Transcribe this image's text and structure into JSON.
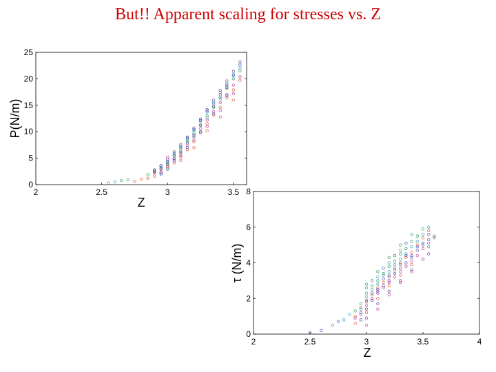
{
  "slide": {
    "title": "But!! Apparent scaling for stresses vs. Z"
  },
  "colors": {
    "title": "#cc0000",
    "series_palette": [
      "#e05a3a",
      "#3a9fb0",
      "#6a3fa0",
      "#2aa05a",
      "#c040a0",
      "#4a5ac0"
    ]
  },
  "chart_data": [
    {
      "id": "pressure",
      "type": "scatter",
      "title": "",
      "xlabel": "Z",
      "ylabel": "P(N/m)",
      "xlim": [
        2,
        3.6
      ],
      "ylim": [
        0,
        25
      ],
      "xticks": [
        "2",
        "2.5",
        "3",
        "3.5"
      ],
      "yticks": [
        "0",
        "5",
        "10",
        "15",
        "20",
        "25"
      ],
      "grid": false,
      "legend": "none",
      "marker": "open-circle",
      "series": [
        {
          "points": [
            [
              2.9,
              1.6
            ],
            [
              2.95,
              2.4
            ],
            [
              3.0,
              3.0
            ],
            [
              3.05,
              4.1
            ],
            [
              3.1,
              5.3
            ],
            [
              3.15,
              6.6
            ],
            [
              3.2,
              8.1
            ],
            [
              3.25,
              9.8
            ],
            [
              3.3,
              11.5
            ],
            [
              3.35,
              13.1
            ],
            [
              3.4,
              14.6
            ],
            [
              3.45,
              16.4
            ],
            [
              3.5,
              17.9
            ],
            [
              3.55,
              19.7
            ],
            [
              2.8,
              1.0
            ],
            [
              2.9,
              2.2
            ],
            [
              3.0,
              3.8
            ],
            [
              3.1,
              4.6
            ],
            [
              3.2,
              7.0
            ],
            [
              3.3,
              10.2
            ],
            [
              3.4,
              12.8
            ],
            [
              3.5,
              16.0
            ],
            [
              2.75,
              0.6
            ],
            [
              2.85,
              1.2
            ]
          ]
        },
        {
          "points": [
            [
              2.95,
              3.2
            ],
            [
              3.0,
              4.4
            ],
            [
              3.05,
              5.9
            ],
            [
              3.1,
              7.0
            ],
            [
              3.15,
              8.6
            ],
            [
              3.2,
              10.2
            ],
            [
              3.25,
              12.0
            ],
            [
              3.3,
              13.7
            ],
            [
              3.35,
              15.6
            ],
            [
              3.4,
              17.4
            ],
            [
              3.45,
              19.0
            ],
            [
              3.5,
              20.8
            ],
            [
              3.55,
              22.0
            ],
            [
              3.0,
              2.9
            ],
            [
              3.1,
              6.1
            ],
            [
              3.2,
              9.4
            ],
            [
              3.3,
              12.6
            ],
            [
              3.4,
              16.2
            ],
            [
              2.55,
              0.3
            ],
            [
              2.6,
              0.5
            ]
          ]
        },
        {
          "points": [
            [
              2.9,
              2.8
            ],
            [
              2.95,
              3.5
            ],
            [
              3.0,
              4.7
            ],
            [
              3.05,
              6.2
            ],
            [
              3.1,
              7.6
            ],
            [
              3.15,
              9.0
            ],
            [
              3.2,
              10.7
            ],
            [
              3.25,
              12.4
            ],
            [
              3.3,
              14.2
            ],
            [
              3.35,
              16.0
            ],
            [
              3.4,
              17.8
            ],
            [
              3.45,
              19.6
            ],
            [
              3.5,
              21.4
            ],
            [
              3.55,
              23.2
            ],
            [
              2.95,
              2.2
            ],
            [
              3.05,
              5.0
            ],
            [
              3.15,
              7.9
            ],
            [
              3.25,
              11.2
            ],
            [
              3.35,
              14.8
            ],
            [
              3.45,
              18.4
            ]
          ]
        },
        {
          "points": [
            [
              2.85,
              1.9
            ],
            [
              2.95,
              3.0
            ],
            [
              3.0,
              4.0
            ],
            [
              3.05,
              5.4
            ],
            [
              3.1,
              6.8
            ],
            [
              3.15,
              8.2
            ],
            [
              3.2,
              9.7
            ],
            [
              3.25,
              11.3
            ],
            [
              3.3,
              13.0
            ],
            [
              3.35,
              14.6
            ],
            [
              3.4,
              16.5
            ],
            [
              3.45,
              18.2
            ],
            [
              3.5,
              20.0
            ],
            [
              3.55,
              21.5
            ],
            [
              2.9,
              2.5
            ],
            [
              3.0,
              3.5
            ],
            [
              3.1,
              6.0
            ],
            [
              3.2,
              9.0
            ],
            [
              2.65,
              0.8
            ],
            [
              2.7,
              0.9
            ]
          ]
        },
        {
          "points": [
            [
              2.9,
              2.3
            ],
            [
              2.95,
              2.9
            ],
            [
              3.0,
              3.4
            ],
            [
              3.05,
              4.8
            ],
            [
              3.1,
              6.3
            ],
            [
              3.15,
              7.4
            ],
            [
              3.2,
              9.2
            ],
            [
              3.25,
              10.6
            ],
            [
              3.3,
              12.2
            ],
            [
              3.35,
              13.8
            ],
            [
              3.4,
              15.5
            ],
            [
              3.45,
              17.0
            ],
            [
              3.5,
              18.8
            ],
            [
              3.55,
              20.4
            ],
            [
              3.0,
              5.2
            ],
            [
              3.1,
              5.5
            ],
            [
              3.2,
              8.4
            ],
            [
              3.3,
              11.0
            ],
            [
              3.4,
              14.0
            ],
            [
              3.5,
              17.2
            ]
          ]
        },
        {
          "points": [
            [
              2.9,
              2.6
            ],
            [
              2.95,
              3.6
            ],
            [
              3.0,
              4.2
            ],
            [
              3.05,
              5.6
            ],
            [
              3.1,
              7.2
            ],
            [
              3.15,
              8.8
            ],
            [
              3.2,
              10.4
            ],
            [
              3.25,
              12.1
            ],
            [
              3.3,
              13.9
            ],
            [
              3.35,
              15.3
            ],
            [
              3.4,
              17.0
            ],
            [
              3.45,
              18.8
            ],
            [
              3.5,
              20.6
            ],
            [
              3.55,
              22.6
            ],
            [
              2.95,
              2.0
            ],
            [
              3.05,
              4.5
            ],
            [
              3.15,
              7.0
            ],
            [
              3.25,
              10.0
            ],
            [
              3.35,
              13.4
            ],
            [
              3.45,
              16.8
            ]
          ]
        }
      ]
    },
    {
      "id": "shear",
      "type": "scatter",
      "title": "",
      "xlabel": "Z",
      "ylabel": "τ (N/m)",
      "xlim": [
        2,
        4
      ],
      "ylim": [
        0,
        8
      ],
      "xticks": [
        "2",
        "2.5",
        "3",
        "3.5",
        "4"
      ],
      "yticks": [
        "0",
        "2",
        "4",
        "6",
        "8"
      ],
      "grid": false,
      "legend": "none",
      "marker": "open-circle",
      "series": [
        {
          "points": [
            [
              2.9,
              1.0
            ],
            [
              2.95,
              1.5
            ],
            [
              3.0,
              1.8
            ],
            [
              3.05,
              2.2
            ],
            [
              3.1,
              2.6
            ],
            [
              3.15,
              2.9
            ],
            [
              3.2,
              3.2
            ],
            [
              3.25,
              3.6
            ],
            [
              3.3,
              3.9
            ],
            [
              3.35,
              4.3
            ],
            [
              3.4,
              4.6
            ],
            [
              3.45,
              5.0
            ],
            [
              3.5,
              5.4
            ],
            [
              3.55,
              5.8
            ],
            [
              2.9,
              0.6
            ],
            [
              3.0,
              1.2
            ],
            [
              3.1,
              2.0
            ],
            [
              3.2,
              2.7
            ],
            [
              3.3,
              3.3
            ],
            [
              3.4,
              3.9
            ]
          ]
        },
        {
          "points": [
            [
              2.85,
              1.1
            ],
            [
              2.95,
              1.4
            ],
            [
              3.0,
              2.1
            ],
            [
              3.05,
              2.5
            ],
            [
              3.1,
              2.8
            ],
            [
              3.15,
              3.3
            ],
            [
              3.2,
              3.5
            ],
            [
              3.25,
              3.9
            ],
            [
              3.3,
              4.2
            ],
            [
              3.35,
              4.5
            ],
            [
              3.4,
              4.9
            ],
            [
              3.45,
              5.2
            ],
            [
              3.5,
              5.6
            ],
            [
              3.55,
              6.0
            ],
            [
              2.7,
              0.5
            ],
            [
              2.8,
              0.8
            ],
            [
              3.0,
              2.8
            ],
            [
              3.1,
              3.2
            ],
            [
              3.2,
              4.0
            ],
            [
              3.3,
              4.7
            ]
          ]
        },
        {
          "points": [
            [
              2.95,
              0.8
            ],
            [
              3.0,
              1.4
            ],
            [
              3.05,
              1.9
            ],
            [
              3.1,
              2.3
            ],
            [
              3.15,
              2.7
            ],
            [
              3.2,
              3.0
            ],
            [
              3.25,
              3.4
            ],
            [
              3.3,
              3.7
            ],
            [
              3.35,
              4.0
            ],
            [
              3.4,
              4.4
            ],
            [
              3.45,
              4.7
            ],
            [
              3.5,
              5.1
            ],
            [
              3.55,
              5.3
            ],
            [
              3.0,
              0.9
            ],
            [
              3.1,
              1.7
            ],
            [
              3.2,
              2.4
            ],
            [
              3.3,
              3.0
            ],
            [
              3.4,
              3.6
            ],
            [
              3.5,
              4.2
            ],
            [
              3.55,
              4.5
            ]
          ]
        },
        {
          "points": [
            [
              2.9,
              1.3
            ],
            [
              2.95,
              1.7
            ],
            [
              3.0,
              2.3
            ],
            [
              3.05,
              2.7
            ],
            [
              3.1,
              3.0
            ],
            [
              3.15,
              3.4
            ],
            [
              3.2,
              3.8
            ],
            [
              3.25,
              4.1
            ],
            [
              3.3,
              4.5
            ],
            [
              3.35,
              4.8
            ],
            [
              3.4,
              5.2
            ],
            [
              3.45,
              5.5
            ],
            [
              3.5,
              5.9
            ],
            [
              3.55,
              4.9
            ],
            [
              3.6,
              5.4
            ],
            [
              3.0,
              2.6
            ],
            [
              3.1,
              3.5
            ],
            [
              3.2,
              4.3
            ],
            [
              3.3,
              5.0
            ],
            [
              3.4,
              5.6
            ]
          ]
        },
        {
          "points": [
            [
              2.9,
              0.9
            ],
            [
              2.95,
              1.2
            ],
            [
              3.0,
              1.6
            ],
            [
              3.05,
              2.0
            ],
            [
              3.1,
              2.4
            ],
            [
              3.15,
              2.6
            ],
            [
              3.2,
              2.9
            ],
            [
              3.25,
              3.2
            ],
            [
              3.3,
              3.5
            ],
            [
              3.35,
              3.8
            ],
            [
              3.4,
              4.1
            ],
            [
              3.45,
              4.4
            ],
            [
              3.5,
              4.8
            ],
            [
              3.55,
              5.1
            ],
            [
              3.6,
              5.5
            ],
            [
              3.0,
              0.5
            ],
            [
              3.1,
              1.4
            ],
            [
              3.2,
              2.2
            ],
            [
              3.3,
              2.9
            ],
            [
              3.4,
              3.5
            ]
          ]
        },
        {
          "points": [
            [
              2.95,
              1.1
            ],
            [
              3.0,
              1.9
            ],
            [
              3.05,
              2.3
            ],
            [
              3.1,
              2.5
            ],
            [
              3.15,
              3.1
            ],
            [
              3.2,
              3.3
            ],
            [
              3.25,
              3.7
            ],
            [
              3.3,
              4.0
            ],
            [
              3.35,
              4.4
            ],
            [
              3.4,
              4.3
            ],
            [
              3.45,
              4.9
            ],
            [
              3.5,
              5.0
            ],
            [
              3.55,
              5.6
            ],
            [
              2.5,
              0.1
            ],
            [
              2.6,
              0.2
            ],
            [
              2.75,
              0.7
            ],
            [
              3.05,
              3.0
            ],
            [
              3.15,
              3.7
            ],
            [
              3.25,
              4.4
            ],
            [
              3.35,
              5.1
            ]
          ]
        }
      ]
    }
  ]
}
